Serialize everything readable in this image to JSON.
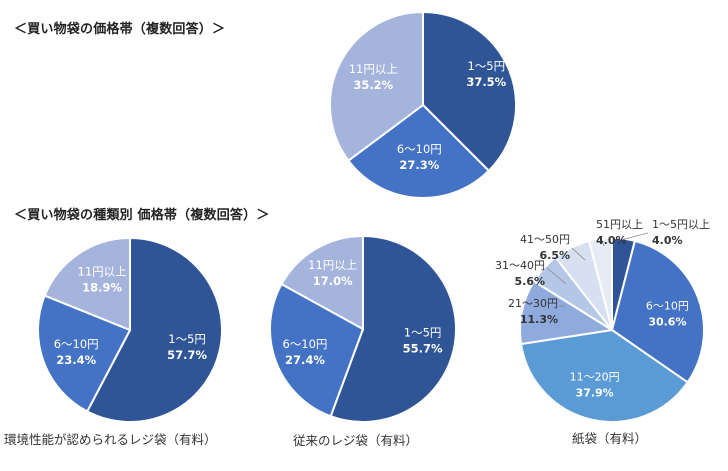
{
  "headings": {
    "overall": "＜買い物袋の価格帯（複数回答）＞",
    "by_type": "＜買い物袋の種類別 価格帯（複数回答）＞"
  },
  "captions": {
    "eco_bag": "環境性能が認められるレジ袋（有料）",
    "plastic_bag": "従来のレジ袋（有料）",
    "paper_bag": "紙袋（有料）"
  },
  "colors": {
    "navy": "#2f5597",
    "blue": "#4472c4",
    "lightblue": "#5b9bd5",
    "periwinkle": "#8faadc",
    "lavender": "#a5b4dc",
    "pale": "#b4c7e7",
    "paler": "#d6e0f0",
    "palest": "#e6ecf6"
  },
  "chart_data": [
    {
      "type": "pie",
      "title": "＜買い物袋の価格帯（複数回答）＞",
      "categories": [
        "1～5円",
        "6～10円",
        "11円以上"
      ],
      "values": [
        37.5,
        27.3,
        35.2
      ],
      "labels": [
        "37.5%",
        "27.3%",
        "35.2%"
      ],
      "colors": [
        "#2f5597",
        "#4472c4",
        "#a5b4dc"
      ]
    },
    {
      "type": "pie",
      "title": "環境性能が認められるレジ袋（有料）",
      "categories": [
        "1～5円",
        "6～10円",
        "11円以上"
      ],
      "values": [
        57.7,
        23.4,
        18.9
      ],
      "labels": [
        "57.7%",
        "23.4%",
        "18.9%"
      ],
      "colors": [
        "#2f5597",
        "#4472c4",
        "#a5b4dc"
      ]
    },
    {
      "type": "pie",
      "title": "従来のレジ袋（有料）",
      "categories": [
        "1～5円",
        "6～10円",
        "11円以上"
      ],
      "values": [
        55.7,
        27.4,
        17.0
      ],
      "labels": [
        "55.7%",
        "27.4%",
        "17.0%"
      ],
      "colors": [
        "#2f5597",
        "#4472c4",
        "#a5b4dc"
      ]
    },
    {
      "type": "pie",
      "title": "紙袋（有料）",
      "categories": [
        "1～5円以上",
        "6～10円",
        "11～20円",
        "21～30円",
        "31～40円",
        "41～50円",
        "51円以上"
      ],
      "values": [
        4.0,
        30.6,
        37.9,
        11.3,
        5.6,
        6.5,
        4.0
      ],
      "labels": [
        "4.0%",
        "30.6%",
        "37.9%",
        "11.3%",
        "5.6%",
        "6.5%",
        "4.0%"
      ],
      "colors": [
        "#2f5597",
        "#4472c4",
        "#5b9bd5",
        "#8faadc",
        "#b4c7e7",
        "#d6e0f0",
        "#e6ecf6"
      ]
    }
  ]
}
